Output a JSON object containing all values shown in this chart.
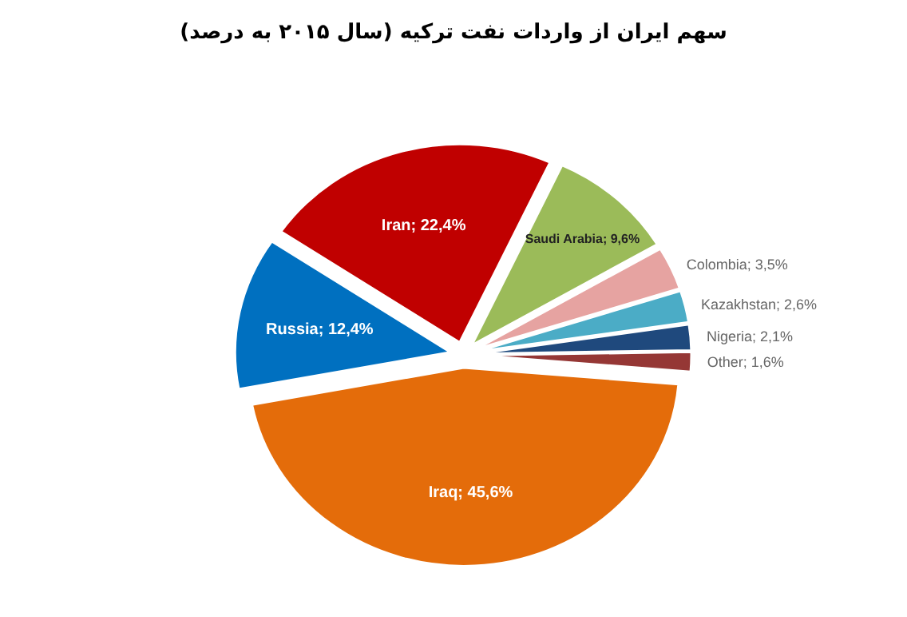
{
  "chart_data": {
    "type": "pie",
    "title": "سهم ایران از واردات نفت ترکیه (سال ۲۰۱۵ به درصد)",
    "categories": [
      "Iran",
      "Saudi Arabia",
      "Colombia",
      "Kazakhstan",
      "Nigeria",
      "Other",
      "Iraq",
      "Russia"
    ],
    "values": [
      22.4,
      9.6,
      3.5,
      2.6,
      2.1,
      1.6,
      45.6,
      12.4
    ],
    "value_labels": [
      "22,4%",
      "9,6%",
      "3,5%",
      "2,6%",
      "2,1%",
      "1,6%",
      "45,6%",
      "12,4%"
    ],
    "colors": [
      "#c00000",
      "#9bbb59",
      "#e6a3a1",
      "#4bacc6",
      "#1f497d",
      "#953735",
      "#e46c0a",
      "#0070c0"
    ]
  }
}
